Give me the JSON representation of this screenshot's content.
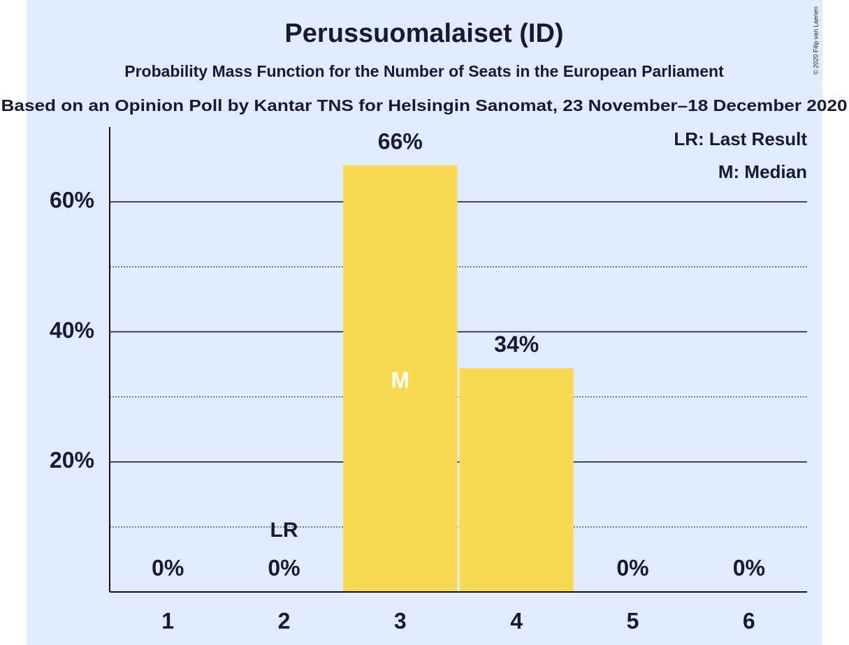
{
  "chart_data": {
    "type": "bar",
    "title": "Perussuomalaiset (ID)",
    "subtitles": [
      "Probability Mass Function for the Number of Seats in the European Parliament",
      "Based on an Opinion Poll by Kantar TNS for Helsingin Sanomat, 23 November–18 December 2020"
    ],
    "copyright": "© 2020 Filip van Laenen",
    "categories": [
      "1",
      "2",
      "3",
      "4",
      "5",
      "6"
    ],
    "values": [
      0,
      0,
      65.6,
      34.4,
      0,
      0
    ],
    "value_labels": [
      "0%",
      "0%",
      "66%",
      "34%",
      "0%",
      "0%"
    ],
    "color": "#f9d951",
    "ylim": [
      0,
      71.5
    ],
    "yticks": [
      {
        "value": 20,
        "label": "20%"
      },
      {
        "value": 40,
        "label": "40%"
      },
      {
        "value": 60,
        "label": "60%"
      }
    ],
    "minor_yticks": [
      10,
      30,
      50
    ],
    "grid": true,
    "markers": {
      "last_result": {
        "label": "LR",
        "category": "2"
      },
      "median": {
        "label": "M",
        "category": "3"
      }
    },
    "legend": [
      "LR: Last Result",
      "M: Median"
    ],
    "legend_position": "upper right"
  }
}
